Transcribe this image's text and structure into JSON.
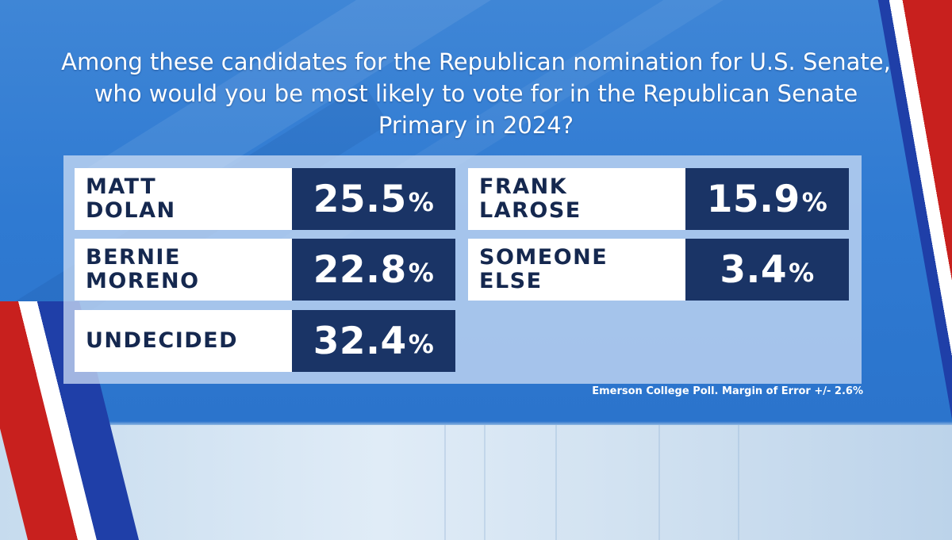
{
  "title": "Among these candidates for the Republican nomination for U.S. Senate, who would you be most likely to vote for in the Republican Senate Primary in 2024?",
  "footnote": "Emerson College Poll. Margin of Error +/- 2.6%",
  "colors": {
    "name_cell_bg": "#ffffff",
    "name_text": "#15284f",
    "value_cell_bg": "#1a3466",
    "value_text": "#ffffff",
    "background_blue": "#2f7ad2"
  },
  "chart_data": {
    "type": "table",
    "title": "Among these candidates for the Republican nomination for U.S. Senate, who would you be most likely to vote for in the Republican Senate Primary in 2024?",
    "unit": "%",
    "rows": [
      {
        "name_line1": "MATT",
        "name_line2": "DOLAN",
        "value": "25.5",
        "unit": "%"
      },
      {
        "name_line1": "FRANK",
        "name_line2": "LAROSE",
        "value": "15.9",
        "unit": "%"
      },
      {
        "name_line1": "BERNIE",
        "name_line2": "MORENO",
        "value": "22.8",
        "unit": "%"
      },
      {
        "name_line1": "SOMEONE",
        "name_line2": "ELSE",
        "value": "3.4",
        "unit": "%"
      },
      {
        "name_line1": "UNDECIDED",
        "name_line2": "",
        "value": "32.4",
        "unit": "%"
      }
    ]
  }
}
